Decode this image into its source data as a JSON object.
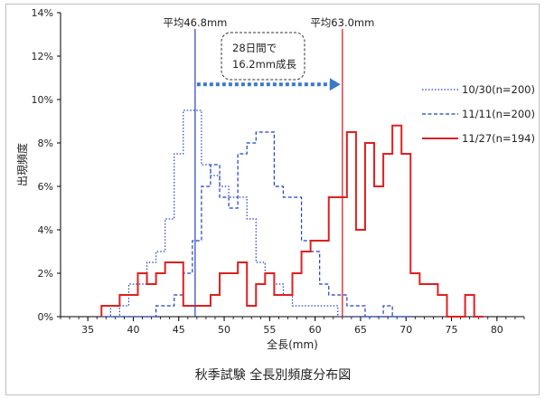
{
  "chart_data": {
    "type": "line",
    "title": "秋季試験 全長別頻度分布図",
    "xlabel": "全長(mm)",
    "ylabel": "出現頻度",
    "xlim": [
      32,
      83
    ],
    "ylim": [
      0,
      14
    ],
    "x_ticks": [
      35,
      40,
      45,
      50,
      55,
      60,
      65,
      70,
      75,
      80
    ],
    "y_ticks": [
      0,
      2,
      4,
      6,
      8,
      10,
      12,
      14
    ],
    "y_tick_suffix": "%",
    "grid": false,
    "legend_placement": "right",
    "series": [
      {
        "name": "10/30(n=200)",
        "color": "#1f3fbf",
        "dash": "dotted",
        "width": 1.2,
        "x": [
          37,
          38,
          39,
          40,
          41,
          42,
          43,
          44,
          45,
          46,
          47,
          48,
          49,
          50,
          51,
          52,
          53,
          54,
          55,
          56,
          57,
          58,
          59,
          60,
          61,
          62,
          63,
          64,
          65,
          66,
          67,
          68,
          69,
          70
        ],
        "values": [
          0.5,
          0,
          0.5,
          1.5,
          1.5,
          2.5,
          3,
          4.5,
          7.5,
          9.5,
          9.5,
          7,
          6.5,
          6,
          5.5,
          5.5,
          4.5,
          2.5,
          2,
          1.5,
          1,
          0.5,
          0.5,
          0.5,
          0.5,
          0.5,
          0,
          0,
          0,
          0,
          0,
          0,
          0,
          0
        ]
      },
      {
        "name": "11/11(n=200)",
        "color": "#1f3fbf",
        "dash": "dashed",
        "width": 1.2,
        "x": [
          37,
          38,
          39,
          40,
          41,
          42,
          43,
          44,
          45,
          46,
          47,
          48,
          49,
          50,
          51,
          52,
          53,
          54,
          55,
          56,
          57,
          58,
          59,
          60,
          61,
          62,
          63,
          64,
          65,
          66,
          67,
          68,
          69,
          70
        ],
        "values": [
          0,
          0,
          0,
          0,
          0,
          0,
          0.5,
          0.5,
          1,
          2,
          3.5,
          6,
          7,
          5.5,
          5,
          7.5,
          8,
          8.5,
          8.5,
          6,
          5.5,
          5.5,
          3.5,
          3,
          1.5,
          1,
          1,
          0.5,
          0.5,
          0,
          0,
          0.5,
          0,
          0
        ]
      },
      {
        "name": "11/27(n=194)",
        "color": "#e02020",
        "dash": "solid",
        "width": 2,
        "x": [
          37,
          38,
          39,
          40,
          41,
          42,
          43,
          44,
          45,
          46,
          47,
          48,
          49,
          50,
          51,
          52,
          53,
          54,
          55,
          56,
          57,
          58,
          59,
          60,
          61,
          62,
          63,
          64,
          65,
          66,
          67,
          68,
          69,
          70,
          71,
          72,
          73,
          74,
          75,
          76,
          77,
          78
        ],
        "values": [
          0.5,
          0.5,
          1,
          1,
          2,
          1.5,
          2,
          2.5,
          2.5,
          0.5,
          0.5,
          0.5,
          1,
          2,
          2,
          2.5,
          0.5,
          1.5,
          2,
          1,
          1,
          2,
          3,
          3.5,
          3.5,
          5.5,
          5.5,
          8.5,
          4,
          8,
          6,
          7.5,
          8.8,
          7.5,
          2,
          1.5,
          1.5,
          1,
          0,
          0,
          1,
          0
        ]
      }
    ],
    "mean_lines": [
      {
        "name": "10/30",
        "x": 46.8,
        "label": "平均46.8mm",
        "color": "#3a4fc4"
      },
      {
        "name": "11/27",
        "x": 63.0,
        "label": "平均63.0mm",
        "color": "#e02020"
      }
    ],
    "annotation": {
      "lines": [
        "28日間で",
        "16.2mm成長"
      ],
      "arrow_from": 46.8,
      "arrow_to": 63.0,
      "arrow_y": 10.7,
      "arrow_color": "#3a78c8"
    }
  }
}
